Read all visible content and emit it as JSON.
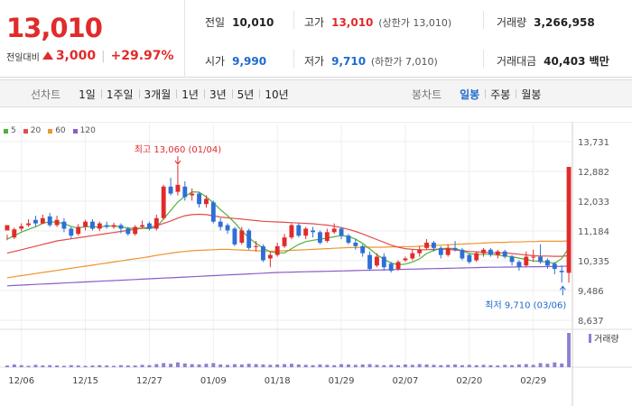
{
  "quote": {
    "price": "13,010",
    "change_label": "전일대비",
    "change_value": "3,000",
    "change_pct": "+29.97%",
    "prev_close_label": "전일",
    "prev_close": "10,010",
    "high_label": "고가",
    "high": "13,010",
    "upper_limit": "(상한가 13,010)",
    "volume_label": "거래량",
    "volume": "3,266,958",
    "open_label": "시가",
    "open": "9,990",
    "low_label": "저가",
    "low": "9,710",
    "lower_limit": "(하한가 7,010)",
    "amount_label": "거래대금",
    "amount": "40,403 백만"
  },
  "tabs": {
    "line_title": "선차트",
    "line_items": [
      "1일",
      "1주일",
      "3개월",
      "1년",
      "3년",
      "5년",
      "10년"
    ],
    "candle_title": "봉차트",
    "candle_items": [
      "일봉",
      "주봉",
      "월봉"
    ],
    "candle_active": 0
  },
  "colors": {
    "up": "#e12b2b",
    "down": "#2d6fd6",
    "ma5": "#4fb13a",
    "ma20": "#e44b4b",
    "ma60": "#f0952f",
    "ma120": "#8b5dc6"
  },
  "chart_data": {
    "type": "candlestick",
    "legend": [
      {
        "name": "5",
        "color": "#4fb13a"
      },
      {
        "name": "20",
        "color": "#e44b4b"
      },
      {
        "name": "60",
        "color": "#f0952f"
      },
      {
        "name": "120",
        "color": "#8b5dc6"
      }
    ],
    "y_ticks": [
      "13,731",
      "12,882",
      "12,033",
      "11,184",
      "10,335",
      "9,486",
      "8,637"
    ],
    "ylim": [
      8637,
      13731
    ],
    "x_ticks": [
      {
        "label": "12/06",
        "index": 2
      },
      {
        "label": "12/15",
        "index": 11
      },
      {
        "label": "12/27",
        "index": 20
      },
      {
        "label": "01/09",
        "index": 29
      },
      {
        "label": "01/18",
        "index": 38
      },
      {
        "label": "01/29",
        "index": 47
      },
      {
        "label": "02/07",
        "index": 56
      },
      {
        "label": "02/20",
        "index": 65
      },
      {
        "label": "02/29",
        "index": 74
      }
    ],
    "annotations": {
      "high_text": "최고 13,060 (01/04)",
      "high_value": 13060,
      "high_index": 24,
      "low_text": "최저 9,710 (03/06)",
      "low_value": 9710,
      "low_index": 77
    },
    "volume_label": "거래량",
    "candles": [
      [
        11200,
        11350,
        11080,
        10920
      ],
      [
        11000,
        11230,
        11280,
        10950
      ],
      [
        11250,
        11320,
        11400,
        11180
      ],
      [
        11350,
        11400,
        11520,
        11300
      ],
      [
        11500,
        11400,
        11620,
        11300
      ],
      [
        11400,
        11550,
        11650,
        11380
      ],
      [
        11600,
        11350,
        11700,
        11300
      ],
      [
        11350,
        11500,
        11620,
        11300
      ],
      [
        11450,
        11250,
        11550,
        11150
      ],
      [
        11250,
        11050,
        11300,
        10950
      ],
      [
        11100,
        11300,
        11380,
        11050
      ],
      [
        11300,
        11450,
        11500,
        11200
      ],
      [
        11450,
        11250,
        11520,
        11200
      ],
      [
        11250,
        11400,
        11450,
        11180
      ],
      [
        11350,
        11300,
        11450,
        11250
      ],
      [
        11300,
        11350,
        11420,
        11250
      ],
      [
        11350,
        11250,
        11400,
        11120
      ],
      [
        11250,
        11100,
        11300,
        11050
      ],
      [
        11100,
        11300,
        11350,
        11050
      ],
      [
        11300,
        11350,
        11480,
        11250
      ],
      [
        11400,
        11250,
        11450,
        11200
      ],
      [
        11250,
        11550,
        11650,
        11200
      ],
      [
        11550,
        12450,
        12500,
        11500
      ],
      [
        12450,
        12250,
        12700,
        12200
      ],
      [
        12300,
        12500,
        13060,
        12200
      ],
      [
        12450,
        12150,
        12600,
        12050
      ],
      [
        12200,
        12250,
        12400,
        12050
      ],
      [
        12250,
        11950,
        12300,
        11850
      ],
      [
        11950,
        12100,
        12200,
        11850
      ],
      [
        12000,
        11450,
        12050,
        11400
      ],
      [
        11450,
        11300,
        11550,
        11200
      ],
      [
        11350,
        11200,
        11400,
        11100
      ],
      [
        11250,
        10800,
        11300,
        10750
      ],
      [
        10850,
        11200,
        11300,
        10800
      ],
      [
        11200,
        10700,
        11250,
        10650
      ],
      [
        10750,
        10750,
        10900,
        10600
      ],
      [
        10750,
        10350,
        10800,
        10300
      ],
      [
        10400,
        10500,
        10600,
        10150
      ],
      [
        10500,
        10750,
        10850,
        10450
      ],
      [
        10750,
        11000,
        11100,
        10700
      ],
      [
        11000,
        11350,
        11400,
        10950
      ],
      [
        11350,
        11050,
        11400,
        11000
      ],
      [
        11050,
        11250,
        11300,
        10950
      ],
      [
        11200,
        11150,
        11300,
        11000
      ],
      [
        11150,
        10850,
        11200,
        10800
      ],
      [
        10900,
        11150,
        11250,
        10850
      ],
      [
        11150,
        11250,
        11400,
        11100
      ],
      [
        11250,
        11050,
        11300,
        10950
      ],
      [
        11050,
        10850,
        11100,
        10800
      ],
      [
        10850,
        10750,
        10950,
        10650
      ],
      [
        10750,
        10550,
        10800,
        10450
      ],
      [
        10500,
        10100,
        10600,
        10050
      ],
      [
        10200,
        10450,
        10550,
        10150
      ],
      [
        10450,
        10150,
        10550,
        10050
      ],
      [
        10250,
        10050,
        10300,
        10000
      ],
      [
        10100,
        10300,
        10350,
        10050
      ],
      [
        10350,
        10400,
        10450,
        10300
      ],
      [
        10400,
        10550,
        10650,
        10350
      ],
      [
        10550,
        10650,
        10750,
        10450
      ],
      [
        10700,
        10850,
        10950,
        10650
      ],
      [
        10850,
        10700,
        10900,
        10600
      ],
      [
        10700,
        10500,
        10750,
        10400
      ],
      [
        10500,
        10700,
        10800,
        10450
      ],
      [
        10700,
        10650,
        10900,
        10600
      ],
      [
        10650,
        10400,
        10700,
        10350
      ],
      [
        10500,
        10300,
        10550,
        10250
      ],
      [
        10350,
        10550,
        10600,
        10300
      ],
      [
        10550,
        10650,
        10700,
        10450
      ],
      [
        10650,
        10500,
        10700,
        10450
      ],
      [
        10500,
        10600,
        10650,
        10400
      ],
      [
        10600,
        10450,
        10650,
        10400
      ],
      [
        10450,
        10300,
        10500,
        10200
      ],
      [
        10300,
        10150,
        10350,
        10050
      ],
      [
        10200,
        10450,
        10600,
        10150
      ],
      [
        10450,
        10450,
        10650,
        10300
      ],
      [
        10450,
        10300,
        10800,
        10250
      ],
      [
        10350,
        10200,
        10400,
        10100
      ],
      [
        10250,
        10100,
        10300,
        9950
      ],
      [
        10050,
        10010,
        10200,
        9710
      ],
      [
        9990,
        13010,
        13010,
        9710
      ]
    ],
    "ma5": [
      10950,
      11050,
      11150,
      11230,
      11300,
      11400,
      11450,
      11430,
      11400,
      11310,
      11270,
      11310,
      11310,
      11290,
      11330,
      11320,
      11310,
      11260,
      11260,
      11260,
      11250,
      11290,
      11530,
      11770,
      12010,
      12170,
      12300,
      12290,
      12160,
      11990,
      11790,
      11620,
      11420,
      11190,
      10990,
      10830,
      10700,
      10590,
      10560,
      10560,
      10680,
      10800,
      10880,
      10920,
      10950,
      10980,
      11020,
      11050,
      11030,
      10950,
      10830,
      10670,
      10510,
      10380,
      10270,
      10220,
      10240,
      10300,
      10390,
      10540,
      10630,
      10680,
      10690,
      10680,
      10620,
      10540,
      10510,
      10520,
      10520,
      10500,
      10470,
      10450,
      10410,
      10370,
      10330,
      10320,
      10290,
      10260,
      10400,
      10700
    ],
    "ma20": [
      10550,
      10600,
      10650,
      10700,
      10750,
      10800,
      10850,
      10900,
      10930,
      10960,
      10990,
      11020,
      11050,
      11080,
      11110,
      11140,
      11170,
      11200,
      11230,
      11260,
      11290,
      11330,
      11400,
      11470,
      11550,
      11620,
      11650,
      11660,
      11650,
      11620,
      11580,
      11560,
      11540,
      11520,
      11500,
      11480,
      11460,
      11450,
      11440,
      11430,
      11420,
      11410,
      11400,
      11390,
      11370,
      11350,
      11320,
      11280,
      11230,
      11170,
      11100,
      11020,
      10940,
      10860,
      10780,
      10720,
      10680,
      10660,
      10650,
      10650,
      10660,
      10670,
      10660,
      10640,
      10620,
      10600,
      10590,
      10580,
      10570,
      10560,
      10560,
      10540,
      10520,
      10500,
      10480,
      10470,
      10470,
      10460,
      10460,
      10480
    ],
    "ma60": [
      9850,
      9880,
      9910,
      9940,
      9970,
      10000,
      10030,
      10060,
      10090,
      10120,
      10150,
      10180,
      10210,
      10240,
      10270,
      10300,
      10330,
      10360,
      10390,
      10420,
      10450,
      10490,
      10520,
      10550,
      10580,
      10600,
      10620,
      10630,
      10640,
      10650,
      10660,
      10660,
      10650,
      10640,
      10630,
      10620,
      10610,
      10610,
      10610,
      10620,
      10630,
      10640,
      10650,
      10660,
      10670,
      10680,
      10690,
      10700,
      10710,
      10710,
      10720,
      10720,
      10720,
      10720,
      10730,
      10730,
      10740,
      10740,
      10750,
      10760,
      10770,
      10780,
      10790,
      10800,
      10810,
      10820,
      10830,
      10840,
      10850,
      10860,
      10860,
      10870,
      10870,
      10880,
      10880,
      10890,
      10890,
      10890,
      10890,
      10900
    ],
    "ma120": [
      9620,
      9630,
      9640,
      9650,
      9660,
      9670,
      9680,
      9690,
      9700,
      9710,
      9720,
      9730,
      9740,
      9750,
      9760,
      9770,
      9780,
      9790,
      9800,
      9810,
      9820,
      9830,
      9840,
      9850,
      9860,
      9870,
      9880,
      9890,
      9900,
      9910,
      9920,
      9930,
      9940,
      9950,
      9960,
      9970,
      9980,
      9990,
      10000,
      10005,
      10010,
      10015,
      10020,
      10025,
      10030,
      10035,
      10040,
      10045,
      10050,
      10055,
      10060,
      10065,
      10070,
      10075,
      10080,
      10085,
      10090,
      10095,
      10100,
      10105,
      10110,
      10115,
      10120,
      10125,
      10130,
      10135,
      10140,
      10145,
      10150,
      10150,
      10155,
      10155,
      10160,
      10160,
      10165,
      10165,
      10170,
      10170,
      10175,
      10180
    ],
    "volumes": [
      5,
      8,
      6,
      4,
      7,
      5,
      6,
      5,
      4,
      6,
      5,
      4,
      5,
      6,
      5,
      4,
      6,
      5,
      5,
      7,
      6,
      9,
      12,
      10,
      14,
      11,
      9,
      8,
      10,
      12,
      8,
      7,
      9,
      8,
      10,
      9,
      8,
      7,
      8,
      9,
      10,
      8,
      7,
      6,
      8,
      7,
      6,
      9,
      8,
      7,
      8,
      9,
      7,
      6,
      7,
      6,
      8,
      7,
      9,
      8,
      7,
      6,
      7,
      8,
      6,
      7,
      6,
      7,
      6,
      5,
      7,
      6,
      8,
      9,
      7,
      12,
      10,
      14,
      11,
      100
    ]
  }
}
